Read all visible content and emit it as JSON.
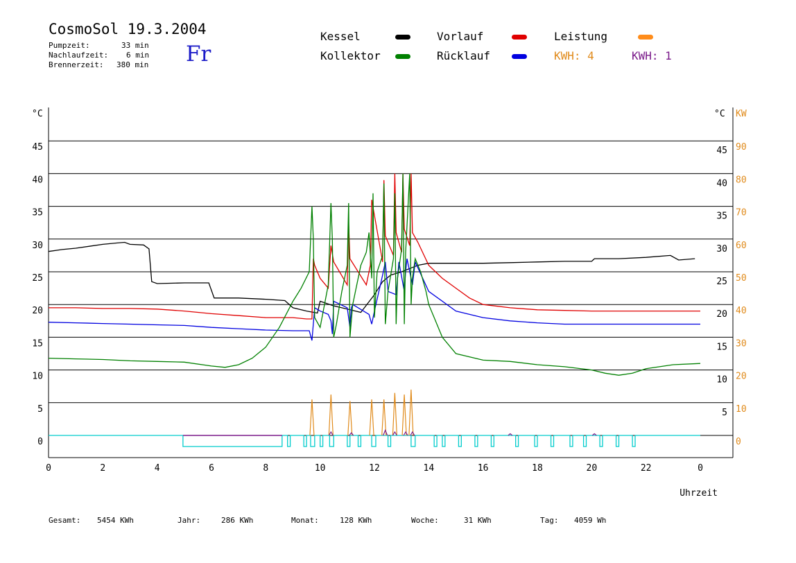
{
  "header": {
    "title": "CosmoSol 19.3.2004",
    "stats": [
      {
        "label": "Pumpzeit:",
        "value": "33 min"
      },
      {
        "label": "Nachlaufzeit:",
        "value": "6 min"
      },
      {
        "label": "Brennerzeit:",
        "value": "380 min"
      }
    ],
    "day": "Fr"
  },
  "legend": {
    "kessel": {
      "label": "Kessel",
      "color": "#000000"
    },
    "kollektor": {
      "label": "Kollektor",
      "color": "#008000"
    },
    "vorlauf": {
      "label": "Vorlauf",
      "color": "#e00000"
    },
    "ruecklauf": {
      "label": "Rücklauf",
      "color": "#0000e0"
    },
    "leistung": {
      "label": "Leistung",
      "color": "#ff8c1a"
    },
    "kwh1": {
      "label": "KWH: 4",
      "color": "#e08a1a"
    },
    "kwh2": {
      "label": "KWH: 1",
      "color": "#7a1a8a"
    }
  },
  "footer": {
    "gesamt_label": "Gesamt:",
    "gesamt_value": "5454 KWh",
    "jahr_label": "Jahr:",
    "jahr_value": "286 KWh",
    "monat_label": "Monat:",
    "monat_value": "128 KWh",
    "woche_label": "Woche:",
    "woche_value": "31 KWh",
    "tag_label": "Tag:",
    "tag_value": "4059 Wh"
  },
  "chart_data": {
    "type": "line",
    "xlabel": "Uhrzeit",
    "ylabel_left": "°C",
    "ylabel_right_temp": "°C",
    "ylabel_right_power": "KW",
    "xlim": [
      0,
      24
    ],
    "ylim": [
      0,
      50
    ],
    "grid": true,
    "x_ticks": [
      "0",
      "2",
      "4",
      "6",
      "8",
      "10",
      "12",
      "14",
      "16",
      "18",
      "20",
      "22",
      "0"
    ],
    "y_ticks_left": [
      "0",
      "5",
      "10",
      "15",
      "20",
      "25",
      "30",
      "35",
      "40",
      "45"
    ],
    "y_ticks_right_temp": [
      "5",
      "10",
      "15",
      "20",
      "25",
      "30",
      "35",
      "40",
      "45"
    ],
    "y_ticks_right_power": [
      "0",
      "10",
      "20",
      "30",
      "40",
      "50",
      "60",
      "70",
      "80",
      "90"
    ],
    "series": [
      {
        "name": "Kessel",
        "color": "#000000",
        "x": [
          0,
          0.5,
          1,
          1.5,
          2,
          2.5,
          2.8,
          3,
          3.5,
          3.7,
          3.8,
          4,
          5,
          5.9,
          6.1,
          6.5,
          7,
          8,
          8.7,
          9,
          9.5,
          9.9,
          10,
          10.5,
          11,
          11.5,
          12,
          12.3,
          12.6,
          13,
          13.3,
          13.6,
          14,
          15,
          16,
          17,
          18,
          19,
          20,
          20.1,
          21,
          22,
          22.9,
          23.2,
          23.8
        ],
        "y": [
          28.1,
          28.4,
          28.6,
          28.9,
          29.2,
          29.4,
          29.5,
          29.2,
          29.1,
          28.5,
          23.5,
          23.2,
          23.3,
          23.3,
          21.0,
          21.0,
          21.0,
          20.8,
          20.6,
          19.5,
          19.0,
          18.7,
          20.5,
          19.8,
          19.3,
          18.8,
          21.5,
          23.5,
          24.5,
          25.0,
          25.5,
          26.0,
          26.3,
          26.3,
          26.3,
          26.4,
          26.5,
          26.6,
          26.6,
          27.0,
          27.0,
          27.2,
          27.5,
          26.8,
          27.0
        ]
      },
      {
        "name": "Vorlauf",
        "color": "#e00000",
        "x": [
          0,
          1,
          2,
          3,
          4,
          5,
          6,
          7,
          8,
          9,
          9.5,
          9.7,
          9.75,
          9.8,
          10,
          10.3,
          10.4,
          10.5,
          11,
          11.05,
          11.1,
          11.7,
          11.85,
          11.9,
          12.3,
          12.35,
          12.4,
          12.7,
          12.75,
          12.8,
          13.0,
          13.05,
          13.1,
          13.3,
          13.35,
          13.4,
          13.6,
          14,
          14.5,
          15,
          15.5,
          16,
          17,
          18,
          19,
          20,
          21,
          22,
          23,
          24
        ],
        "y": [
          19.5,
          19.5,
          19.4,
          19.4,
          19.3,
          19.0,
          18.6,
          18.3,
          18.0,
          18.0,
          17.8,
          17.8,
          27.0,
          26.0,
          24.0,
          22.5,
          29.0,
          26.5,
          23.0,
          32.5,
          27.0,
          23.0,
          26.0,
          36.0,
          26.5,
          39.0,
          30.5,
          27.5,
          40.0,
          31.0,
          28.0,
          40.0,
          31.5,
          29.0,
          40.0,
          31.0,
          29.5,
          26.0,
          24.0,
          22.5,
          21.0,
          20.0,
          19.5,
          19.2,
          19.1,
          19.0,
          19.0,
          19.0,
          19.0,
          19.0
        ]
      },
      {
        "name": "Rücklauf",
        "color": "#0000e0",
        "x": [
          0,
          1,
          2,
          3,
          4,
          5,
          6,
          7,
          8,
          9,
          9.6,
          9.7,
          9.8,
          10,
          10.3,
          10.4,
          10.45,
          10.5,
          11,
          11.1,
          11.15,
          11.2,
          11.8,
          11.9,
          12,
          12.3,
          12.4,
          12.5,
          12.8,
          12.85,
          12.9,
          13.1,
          13.15,
          13.2,
          13.4,
          13.5,
          14,
          15,
          16,
          17,
          18,
          19,
          20,
          21,
          22,
          23,
          24
        ],
        "y": [
          17.3,
          17.2,
          17.1,
          17.0,
          16.9,
          16.8,
          16.5,
          16.3,
          16.1,
          16.0,
          16.0,
          14.5,
          19.5,
          19.0,
          18.5,
          17.5,
          15.5,
          20.5,
          19.5,
          16.5,
          19.5,
          20.0,
          18.5,
          17.0,
          19.0,
          24.5,
          26.5,
          22.0,
          21.5,
          24.0,
          26.5,
          22.0,
          25.0,
          27.0,
          23.0,
          26.5,
          22.0,
          19.0,
          18.0,
          17.5,
          17.2,
          17.0,
          17.0,
          17.0,
          17.0,
          17.0,
          17.0
        ]
      },
      {
        "name": "Kollektor",
        "color": "#008000",
        "x": [
          0,
          1,
          2,
          3,
          4,
          5,
          6,
          6.5,
          7,
          7.5,
          8,
          8.5,
          9,
          9.3,
          9.6,
          9.7,
          9.75,
          9.8,
          10,
          10.3,
          10.4,
          10.45,
          10.5,
          10.6,
          10.8,
          11,
          11.05,
          11.1,
          11.2,
          11.5,
          11.7,
          11.8,
          11.9,
          11.95,
          12,
          12.1,
          12.3,
          12.35,
          12.4,
          12.5,
          12.7,
          12.75,
          12.8,
          12.85,
          13.0,
          13.05,
          13.1,
          13.15,
          13.3,
          13.35,
          13.4,
          13.5,
          13.7,
          13.9,
          14,
          14.2,
          14.5,
          15,
          16,
          17,
          18,
          19,
          20,
          20.5,
          21,
          21.5,
          22,
          23,
          24
        ],
        "y": [
          11.8,
          11.7,
          11.6,
          11.4,
          11.3,
          11.2,
          10.6,
          10.4,
          10.8,
          11.8,
          13.5,
          16.5,
          20.5,
          22.5,
          25.0,
          35.0,
          30.0,
          18.0,
          16.5,
          23.0,
          35.5,
          30.0,
          15.0,
          17.0,
          22.0,
          26.0,
          35.5,
          15.0,
          20.0,
          26.0,
          28.0,
          31.0,
          24.0,
          37.0,
          18.0,
          25.0,
          27.5,
          38.5,
          17.0,
          22.0,
          27.0,
          37.0,
          17.0,
          24.0,
          28.5,
          40.0,
          17.0,
          28.0,
          40.0,
          20.0,
          24.0,
          27.0,
          25.0,
          22.0,
          20.0,
          18.0,
          15.0,
          12.5,
          11.5,
          11.3,
          10.8,
          10.5,
          10.0,
          9.5,
          9.2,
          9.5,
          10.2,
          10.8,
          11.0
        ]
      }
    ],
    "power": {
      "name": "Leistung",
      "unit": "KW",
      "color": "#e08a1a",
      "x": [
        9.7,
        10.4,
        11.1,
        11.9,
        12.35,
        12.75,
        13.1,
        13.35
      ],
      "y": [
        11,
        12.5,
        10.5,
        11,
        11,
        13,
        12.5,
        14
      ]
    },
    "kwh_bars": {
      "color": "#7a1a8a",
      "x": [
        10.4,
        11.15,
        12.4,
        12.75,
        13.15,
        13.4,
        17.0,
        20.1
      ],
      "y": [
        2,
        1.5,
        3,
        2,
        2,
        2,
        1,
        1
      ]
    },
    "pump": {
      "color": "#00cccc",
      "on_intervals": [
        [
          4.95,
          8.6
        ],
        [
          8.8,
          8.9
        ],
        [
          9.4,
          9.5
        ],
        [
          9.65,
          9.8
        ],
        [
          10.0,
          10.1
        ],
        [
          10.35,
          10.5
        ],
        [
          11.0,
          11.1
        ],
        [
          11.4,
          11.5
        ],
        [
          11.9,
          12.05
        ],
        [
          12.5,
          12.6
        ],
        [
          13.35,
          13.5
        ],
        [
          14.2,
          14.3
        ],
        [
          14.5,
          14.6
        ],
        [
          15.1,
          15.2
        ],
        [
          15.7,
          15.8
        ],
        [
          16.3,
          16.4
        ],
        [
          17.2,
          17.3
        ],
        [
          17.9,
          18.0
        ],
        [
          18.5,
          18.6
        ],
        [
          19.2,
          19.3
        ],
        [
          19.7,
          19.8
        ],
        [
          20.3,
          20.4
        ],
        [
          20.9,
          21.0
        ],
        [
          21.5,
          21.6
        ]
      ]
    },
    "burner": {
      "color": "#7a1a8a",
      "on_intervals": [
        [
          4.95,
          8.6
        ]
      ]
    }
  }
}
